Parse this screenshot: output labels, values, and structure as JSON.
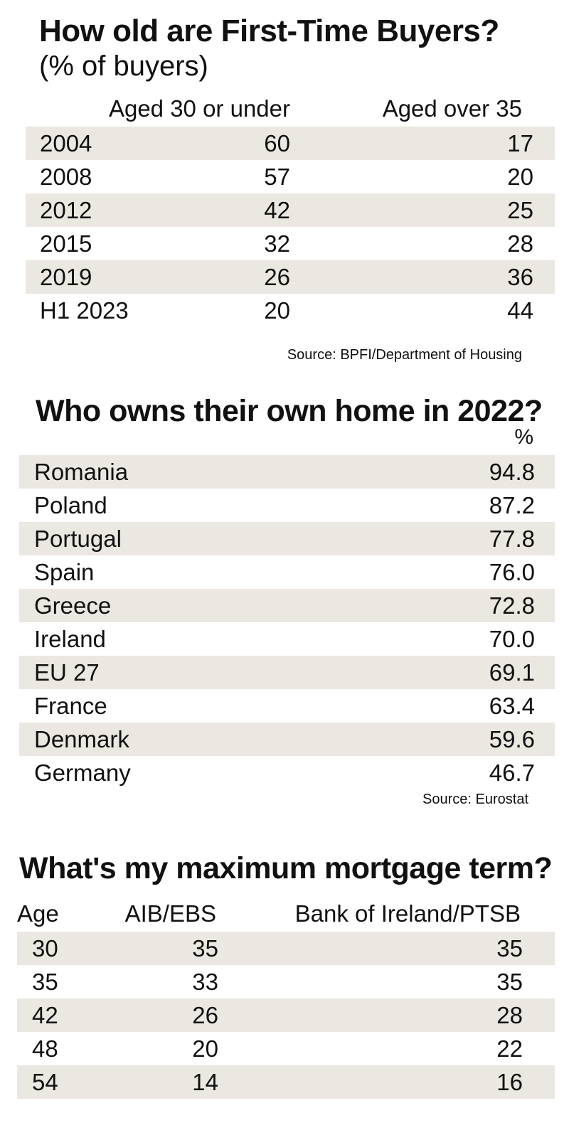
{
  "first_time_buyers": {
    "title": "How old are First-Time Buyers?",
    "subtitle": "(% of buyers)",
    "col_under_30": "Aged 30 or under",
    "col_over_35": "Aged over 35",
    "rows": [
      {
        "year": "2004",
        "under30": "60",
        "over35": "17"
      },
      {
        "year": "2008",
        "under30": "57",
        "over35": "20"
      },
      {
        "year": "2012",
        "under30": "42",
        "over35": "25"
      },
      {
        "year": "2015",
        "under30": "32",
        "over35": "28"
      },
      {
        "year": "2019",
        "under30": "26",
        "over35": "36"
      },
      {
        "year": "H1 2023",
        "under30": "20",
        "over35": "44"
      }
    ],
    "source": "Source: BPFI/Department of Housing"
  },
  "home_ownership": {
    "title": "Who owns their own home in 2022?",
    "unit": "%",
    "rows": [
      {
        "country": "Romania",
        "pct": "94.8"
      },
      {
        "country": "Poland",
        "pct": "87.2"
      },
      {
        "country": "Portugal",
        "pct": "77.8"
      },
      {
        "country": "Spain",
        "pct": "76.0"
      },
      {
        "country": "Greece",
        "pct": "72.8"
      },
      {
        "country": "Ireland",
        "pct": "70.0"
      },
      {
        "country": "EU 27",
        "pct": "69.1"
      },
      {
        "country": "France",
        "pct": "63.4"
      },
      {
        "country": "Denmark",
        "pct": "59.6"
      },
      {
        "country": "Germany",
        "pct": "46.7"
      }
    ],
    "source": "Source: Eurostat"
  },
  "mortgage_term": {
    "title": "What's my maximum mortgage term?",
    "col_age": "Age",
    "col_aib": "AIB/EBS",
    "col_boi": "Bank of Ireland/PTSB",
    "rows": [
      {
        "age": "30",
        "aib": "35",
        "boi": "35"
      },
      {
        "age": "35",
        "aib": "33",
        "boi": "35"
      },
      {
        "age": "42",
        "aib": "26",
        "boi": "28"
      },
      {
        "age": "48",
        "aib": "20",
        "boi": "22"
      },
      {
        "age": "54",
        "aib": "14",
        "boi": "16"
      }
    ]
  }
}
